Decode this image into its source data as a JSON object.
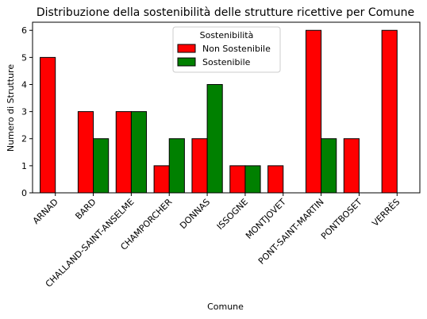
{
  "chart_data": {
    "type": "bar",
    "title": "Distribuzione della sostenibilità delle strutture ricettive per Comune",
    "xlabel": "Comune",
    "ylabel": "Numero di Strutture",
    "categories": [
      "ARNAD",
      "BARD",
      "CHALLAND-SAINT-ANSELME",
      "CHAMPORCHER",
      "DONNAS",
      "ISSOGNE",
      "MONTJOVET",
      "PONT-SAINT-MARTIN",
      "PONTBOSET",
      "VERRÈS"
    ],
    "series": [
      {
        "name": "Non Sostenibile",
        "color": "#ff0000",
        "values": [
          5,
          3,
          3,
          1,
          2,
          1,
          1,
          6,
          2,
          6
        ]
      },
      {
        "name": "Sostenibile",
        "color": "#008000",
        "values": [
          0,
          2,
          3,
          2,
          4,
          1,
          0,
          2,
          0,
          0
        ]
      }
    ],
    "ylim": [
      0,
      6.3
    ],
    "yticks": [
      0,
      1,
      2,
      3,
      4,
      5,
      6
    ],
    "legend": {
      "title": "Sostenibilità",
      "position": "top-center"
    },
    "grid": false
  }
}
